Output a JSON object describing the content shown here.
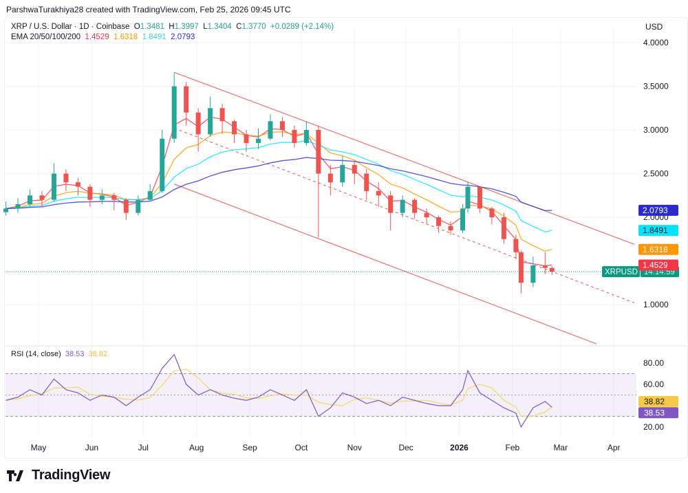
{
  "credit": "ParshwaTurakhiya28 created with TradingView.com, Feb 25, 2026 09:45 UTC",
  "legend": {
    "symbol": "XRP / U.S. Dollar · 1D · Coinbase",
    "o_label": "O",
    "o": "1.3481",
    "h_label": "H",
    "h": "1.3997",
    "l_label": "L",
    "l": "1.3404",
    "c_label": "C",
    "c": "1.3770",
    "change": "+0.0289 (+2.14%)",
    "ema_label": "EMA 20/50/100/200",
    "ema20": "1.4529",
    "ema50": "1.6318",
    "ema100": "1.8491",
    "ema200": "2.0793"
  },
  "currency": "USD",
  "rsi_legend": {
    "label": "RSI (14, close)",
    "rsi": "38.53",
    "ma": "38.82"
  },
  "price_badges": {
    "symbol": "XRPUSD",
    "countdown": "14:14:59"
  },
  "logo_text": "TradingView",
  "colors": {
    "up": "#26a69a",
    "down": "#ef5350",
    "ema20": "#f23645",
    "ema50": "#ff9800",
    "ema100": "#00e5ff",
    "ema200": "#2a2ad0",
    "channel": "#e57373",
    "rsi": "#7e57c2",
    "rsi_ma": "#f7d774",
    "last_price": "#089981"
  },
  "chart_data": [
    {
      "type": "candlestick",
      "xaxis_ticks": [
        {
          "label": "May",
          "date": "2025-05-01"
        },
        {
          "label": "Jun",
          "date": "2025-06-01"
        },
        {
          "label": "Jul",
          "date": "2025-07-01"
        },
        {
          "label": "Aug",
          "date": "2025-08-01"
        },
        {
          "label": "Sep",
          "date": "2025-09-01"
        },
        {
          "label": "Oct",
          "date": "2025-10-01"
        },
        {
          "label": "Nov",
          "date": "2025-11-01"
        },
        {
          "label": "Dec",
          "date": "2025-12-01"
        },
        {
          "label": "2026",
          "date": "2026-01-01"
        },
        {
          "label": "Feb",
          "date": "2026-02-01"
        },
        {
          "label": "Mar",
          "date": "2026-03-01"
        },
        {
          "label": "Apr",
          "date": "2026-04-01"
        }
      ],
      "yaxis_ticks": [
        "4.0000",
        "3.5000",
        "3.0000",
        "2.5000",
        "2.0000",
        "1.0000"
      ],
      "ylim": [
        0.5,
        4.2
      ],
      "dates": [
        "2025-04-12",
        "2025-04-19",
        "2025-04-26",
        "2025-05-03",
        "2025-05-10",
        "2025-05-17",
        "2025-05-24",
        "2025-05-31",
        "2025-06-07",
        "2025-06-14",
        "2025-06-21",
        "2025-06-28",
        "2025-07-05",
        "2025-07-12",
        "2025-07-19",
        "2025-07-26",
        "2025-08-02",
        "2025-08-09",
        "2025-08-16",
        "2025-08-23",
        "2025-08-30",
        "2025-09-06",
        "2025-09-13",
        "2025-09-20",
        "2025-09-27",
        "2025-10-04",
        "2025-10-11",
        "2025-10-18",
        "2025-10-25",
        "2025-11-01",
        "2025-11-08",
        "2025-11-15",
        "2025-11-22",
        "2025-11-29",
        "2025-12-06",
        "2025-12-13",
        "2025-12-20",
        "2025-12-27",
        "2026-01-03",
        "2026-01-06",
        "2026-01-13",
        "2026-01-20",
        "2026-01-27",
        "2026-02-03",
        "2026-02-06",
        "2026-02-13",
        "2026-02-20",
        "2026-02-24"
      ],
      "close": [
        2.1,
        2.15,
        2.25,
        2.2,
        2.5,
        2.4,
        2.35,
        2.2,
        2.25,
        2.2,
        2.05,
        2.2,
        2.3,
        2.9,
        3.5,
        3.2,
        2.95,
        3.25,
        3.1,
        2.95,
        2.85,
        2.9,
        3.1,
        3.0,
        2.85,
        3.0,
        2.5,
        2.4,
        2.6,
        2.5,
        2.3,
        2.25,
        2.05,
        2.2,
        2.05,
        2.0,
        1.9,
        1.85,
        2.1,
        2.35,
        2.1,
        2.0,
        1.75,
        1.6,
        1.25,
        1.45,
        1.42,
        1.377
      ],
      "high": [
        2.18,
        2.22,
        2.32,
        2.3,
        2.62,
        2.55,
        2.45,
        2.38,
        2.32,
        2.28,
        2.22,
        2.25,
        2.38,
        3.0,
        3.66,
        3.55,
        3.25,
        3.38,
        3.3,
        3.12,
        3.0,
        3.02,
        3.18,
        3.15,
        3.05,
        3.1,
        3.05,
        2.6,
        2.7,
        2.65,
        2.55,
        2.4,
        2.3,
        2.25,
        2.22,
        2.1,
        2.02,
        1.95,
        2.15,
        2.41,
        2.35,
        2.12,
        2.05,
        1.8,
        1.62,
        1.55,
        1.6,
        1.44
      ],
      "low": [
        2.02,
        2.05,
        2.12,
        2.12,
        2.18,
        2.3,
        2.25,
        2.12,
        2.15,
        2.08,
        1.97,
        2.02,
        2.18,
        2.28,
        2.85,
        3.05,
        2.75,
        2.92,
        2.95,
        2.85,
        2.75,
        2.78,
        2.88,
        2.92,
        2.8,
        2.82,
        1.77,
        2.25,
        2.35,
        2.38,
        2.2,
        2.12,
        1.85,
        2.0,
        1.98,
        1.92,
        1.82,
        1.8,
        1.82,
        2.05,
        2.05,
        1.92,
        1.7,
        1.52,
        1.13,
        1.2,
        1.35,
        1.34
      ],
      "channel": {
        "upper": [
          {
            "date": "2025-07-19",
            "price": 3.66
          },
          {
            "date": "2026-04-13",
            "price": 1.69
          }
        ],
        "middle": [
          {
            "date": "2025-07-19",
            "price": 3.02
          },
          {
            "date": "2026-04-13",
            "price": 1.02
          }
        ],
        "lower": [
          {
            "date": "2025-07-19",
            "price": 2.38
          },
          {
            "date": "2026-03-22",
            "price": 0.55
          }
        ]
      },
      "ema_last": {
        "ema20": 1.4529,
        "ema50": 1.6318,
        "ema100": 1.8491,
        "ema200": 2.0793
      },
      "last_price": 1.377
    },
    {
      "type": "line",
      "title": "RSI (14, close)",
      "yaxis_ticks": [
        "80.00",
        "60.00",
        "20.00"
      ],
      "ylim": [
        10,
        95
      ],
      "bands": [
        30,
        50,
        70
      ],
      "rsi": [
        45,
        48,
        55,
        50,
        65,
        55,
        52,
        45,
        50,
        48,
        40,
        48,
        55,
        75,
        88,
        60,
        50,
        55,
        50,
        47,
        45,
        48,
        55,
        50,
        45,
        55,
        30,
        38,
        52,
        48,
        42,
        45,
        40,
        48,
        45,
        42,
        40,
        40,
        55,
        73,
        52,
        45,
        38,
        33,
        20,
        38,
        44,
        38.53
      ],
      "rsi_last": 38.53,
      "ma_last": 38.82
    }
  ]
}
